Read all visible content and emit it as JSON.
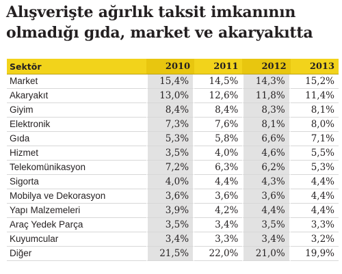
{
  "chart_data": {
    "type": "table",
    "title_lines": [
      "Alışverişte ağırlık taksit imkanının",
      "olmadığı gıda, market ve akaryakıtta"
    ],
    "columns": [
      "Sektör",
      "2010",
      "2011",
      "2012",
      "2013"
    ],
    "rows": [
      {
        "sector": "Market",
        "values": [
          "15,4%",
          "14,5%",
          "14,3%",
          "15,2%"
        ]
      },
      {
        "sector": "Akaryakıt",
        "values": [
          "13,0%",
          "12,6%",
          "11,8%",
          "11,4%"
        ]
      },
      {
        "sector": "Giyim",
        "values": [
          "8,4%",
          "8,4%",
          "8,3%",
          "8,1%"
        ]
      },
      {
        "sector": "Elektronik",
        "values": [
          "7,3%",
          "7,6%",
          "8,1%",
          "8,0%"
        ]
      },
      {
        "sector": "Gıda",
        "values": [
          "5,3%",
          "5,8%",
          "6,6%",
          "7,1%"
        ]
      },
      {
        "sector": "Hizmet",
        "values": [
          "3,5%",
          "4,0%",
          "4,6%",
          "5,5%"
        ]
      },
      {
        "sector": "Telekomünikasyon",
        "values": [
          "7,2%",
          "6,3%",
          "6,2%",
          "5,3%"
        ]
      },
      {
        "sector": "Sigorta",
        "values": [
          "4,0%",
          "4,4%",
          "4,3%",
          "4,4%"
        ]
      },
      {
        "sector": "Mobilya ve Dekorasyon",
        "values": [
          "3,6%",
          "3,6%",
          "3,6%",
          "4,4%"
        ]
      },
      {
        "sector": "Yapı Malzemeleri",
        "values": [
          "3,9%",
          "4,2%",
          "4,4%",
          "4,4%"
        ]
      },
      {
        "sector": "Araç Yedek Parça",
        "values": [
          "3,5%",
          "3,4%",
          "3,5%",
          "3,3%"
        ]
      },
      {
        "sector": "Kuyumcular",
        "values": [
          "3,4%",
          "3,3%",
          "3,4%",
          "3,2%"
        ]
      },
      {
        "sector": "Diğer",
        "values": [
          "21,5%",
          "22,0%",
          "21,0%",
          "19,9%"
        ]
      }
    ],
    "highlighted_columns": [
      "2010",
      "2012"
    ],
    "colors": {
      "header_background": "#f2d31b",
      "highlight_cell": "#e2e2e2",
      "text": "#231f20"
    }
  }
}
